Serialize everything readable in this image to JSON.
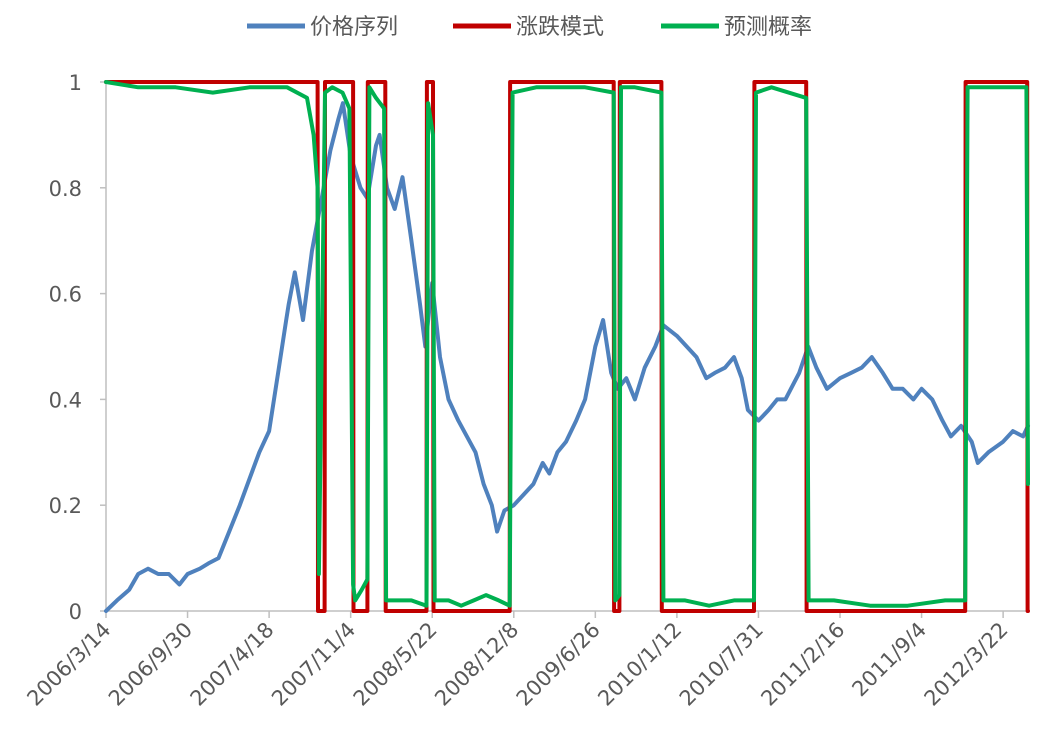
{
  "chart_data": {
    "type": "line",
    "legend_position": "top",
    "grid": false,
    "ylim": [
      0,
      1
    ],
    "y_ticks": [
      "0",
      "0.2",
      "0.4",
      "0.6",
      "0.8",
      "1"
    ],
    "x_ticks": [
      "2006/3/14",
      "2006/9/30",
      "2007/4/18",
      "2007/11/4",
      "2008/5/22",
      "2008/12/8",
      "2009/6/26",
      "2010/1/12",
      "2010/7/31",
      "2011/2/16",
      "2011/9/4",
      "2012/3/22"
    ],
    "xlim": [
      "2006/3/14",
      "2012/5/22"
    ],
    "series": [
      {
        "name": "价格序列",
        "color": "#4F81BD",
        "x": [
          "2006/3/14",
          "2006/4/10",
          "2006/5/10",
          "2006/6/1",
          "2006/6/25",
          "2006/7/20",
          "2006/8/15",
          "2006/9/10",
          "2006/9/30",
          "2006/10/30",
          "2006/11/20",
          "2006/12/15",
          "2007/1/10",
          "2007/2/5",
          "2007/3/1",
          "2007/3/25",
          "2007/4/18",
          "2007/5/10",
          "2007/5/30",
          "2007/6/5",
          "2007/6/20",
          "2007/7/10",
          "2007/8/1",
          "2007/8/25",
          "2007/9/15",
          "2007/10/5",
          "2007/10/16",
          "2007/11/4",
          "2007/11/28",
          "2007/12/15",
          "2008/1/5",
          "2008/1/14",
          "2008/2/1",
          "2008/2/20",
          "2008/3/10",
          "2008/4/1",
          "2008/4/22",
          "2008/5/5",
          "2008/5/22",
          "2008/6/10",
          "2008/7/1",
          "2008/7/25",
          "2008/8/15",
          "2008/9/5",
          "2008/9/25",
          "2008/10/15",
          "2008/10/28",
          "2008/11/15",
          "2008/12/8",
          "2009/1/1",
          "2009/1/25",
          "2009/2/17",
          "2009/3/5",
          "2009/3/25",
          "2009/4/15",
          "2009/5/10",
          "2009/6/1",
          "2009/6/26",
          "2009/7/15",
          "2009/8/4",
          "2009/8/20",
          "2009/9/10",
          "2009/10/1",
          "2009/10/25",
          "2009/11/20",
          "2009/12/10",
          "2010/1/12",
          "2010/2/5",
          "2010/3/1",
          "2010/3/25",
          "2010/4/15",
          "2010/5/10",
          "2010/6/1",
          "2010/6/20",
          "2010/7/5",
          "2010/7/31",
          "2010/8/25",
          "2010/9/15",
          "2010/10/5",
          "2010/11/8",
          "2010/11/30",
          "2010/12/20",
          "2011/1/15",
          "2011/2/16",
          "2011/3/15",
          "2011/4/10",
          "2011/5/5",
          "2011/6/1",
          "2011/6/25",
          "2011/7/20",
          "2011/8/15",
          "2011/9/4",
          "2011/9/30",
          "2011/10/25",
          "2011/11/15",
          "2011/12/10",
          "2012/1/5",
          "2012/1/20",
          "2012/2/15",
          "2012/3/22",
          "2012/4/15",
          "2012/5/10",
          "2012/5/22"
        ],
        "values": [
          0.0,
          0.02,
          0.04,
          0.07,
          0.08,
          0.07,
          0.07,
          0.05,
          0.07,
          0.08,
          0.09,
          0.1,
          0.15,
          0.2,
          0.25,
          0.3,
          0.34,
          0.45,
          0.55,
          0.58,
          0.64,
          0.55,
          0.68,
          0.78,
          0.87,
          0.93,
          0.96,
          0.86,
          0.8,
          0.78,
          0.88,
          0.9,
          0.8,
          0.76,
          0.82,
          0.7,
          0.58,
          0.5,
          0.62,
          0.48,
          0.4,
          0.36,
          0.33,
          0.3,
          0.24,
          0.2,
          0.15,
          0.19,
          0.2,
          0.22,
          0.24,
          0.28,
          0.26,
          0.3,
          0.32,
          0.36,
          0.4,
          0.5,
          0.55,
          0.45,
          0.42,
          0.44,
          0.4,
          0.46,
          0.5,
          0.54,
          0.52,
          0.5,
          0.48,
          0.44,
          0.45,
          0.46,
          0.48,
          0.44,
          0.38,
          0.36,
          0.38,
          0.4,
          0.4,
          0.45,
          0.5,
          0.46,
          0.42,
          0.44,
          0.45,
          0.46,
          0.48,
          0.45,
          0.42,
          0.42,
          0.4,
          0.42,
          0.4,
          0.36,
          0.33,
          0.35,
          0.32,
          0.28,
          0.3,
          0.32,
          0.34,
          0.33,
          0.35
        ]
      },
      {
        "name": "涨跌模式",
        "color": "#C00000",
        "x": [
          "2006/3/14",
          "2007/8/15",
          "2007/8/16",
          "2007/9/1",
          "2007/9/2",
          "2007/11/10",
          "2007/11/11",
          "2007/12/15",
          "2007/12/16",
          "2008/1/28",
          "2008/1/29",
          "2008/5/8",
          "2008/5/9",
          "2008/5/24",
          "2008/5/25",
          "2008/11/28",
          "2008/11/29",
          "2009/8/10",
          "2009/8/11",
          "2009/8/24",
          "2009/8/25",
          "2009/12/5",
          "2009/12/6",
          "2010/7/20",
          "2010/7/21",
          "2010/11/25",
          "2010/11/26",
          "2011/12/20",
          "2011/12/21",
          "2012/5/20",
          "2012/5/21",
          "2012/5/22"
        ],
        "values": [
          1,
          1,
          0,
          0,
          1,
          1,
          0,
          0,
          1,
          1,
          0,
          0,
          1,
          1,
          0,
          0,
          1,
          1,
          0,
          0,
          1,
          1,
          0,
          0,
          1,
          1,
          0,
          0,
          1,
          1,
          0,
          0
        ]
      },
      {
        "name": "预测概率",
        "color": "#00B050",
        "x": [
          "2006/3/14",
          "2006/6/1",
          "2006/9/1",
          "2006/12/1",
          "2007/3/1",
          "2007/6/1",
          "2007/7/20",
          "2007/8/5",
          "2007/8/15",
          "2007/8/18",
          "2007/9/2",
          "2007/9/20",
          "2007/10/15",
          "2007/11/1",
          "2007/11/10",
          "2007/11/15",
          "2007/12/1",
          "2007/12/15",
          "2007/12/20",
          "2008/1/5",
          "2008/1/25",
          "2008/1/30",
          "2008/3/1",
          "2008/4/1",
          "2008/5/8",
          "2008/5/12",
          "2008/5/24",
          "2008/5/28",
          "2008/7/1",
          "2008/8/1",
          "2008/9/1",
          "2008/10/1",
          "2008/11/1",
          "2008/11/28",
          "2008/12/5",
          "2009/2/1",
          "2009/4/1",
          "2009/6/1",
          "2009/8/10",
          "2009/8/14",
          "2009/8/24",
          "2009/8/28",
          "2009/10/1",
          "2009/12/5",
          "2009/12/10",
          "2010/2/1",
          "2010/4/1",
          "2010/6/1",
          "2010/7/20",
          "2010/7/25",
          "2010/9/1",
          "2010/11/25",
          "2010/12/1",
          "2011/2/1",
          "2011/5/1",
          "2011/8/1",
          "2011/11/1",
          "2011/12/20",
          "2011/12/26",
          "2012/2/1",
          "2012/4/1",
          "2012/5/18",
          "2012/5/22"
        ],
        "values": [
          1,
          0.99,
          0.99,
          0.98,
          0.99,
          0.99,
          0.97,
          0.9,
          0.8,
          0.07,
          0.98,
          0.99,
          0.98,
          0.95,
          0.05,
          0.02,
          0.04,
          0.06,
          0.99,
          0.97,
          0.95,
          0.02,
          0.02,
          0.02,
          0.01,
          0.96,
          0.9,
          0.02,
          0.02,
          0.01,
          0.02,
          0.03,
          0.02,
          0.01,
          0.98,
          0.99,
          0.99,
          0.99,
          0.98,
          0.02,
          0.03,
          0.99,
          0.99,
          0.98,
          0.02,
          0.02,
          0.01,
          0.02,
          0.02,
          0.98,
          0.99,
          0.97,
          0.02,
          0.02,
          0.01,
          0.01,
          0.02,
          0.02,
          0.99,
          0.99,
          0.99,
          0.99,
          0.24
        ]
      }
    ]
  }
}
